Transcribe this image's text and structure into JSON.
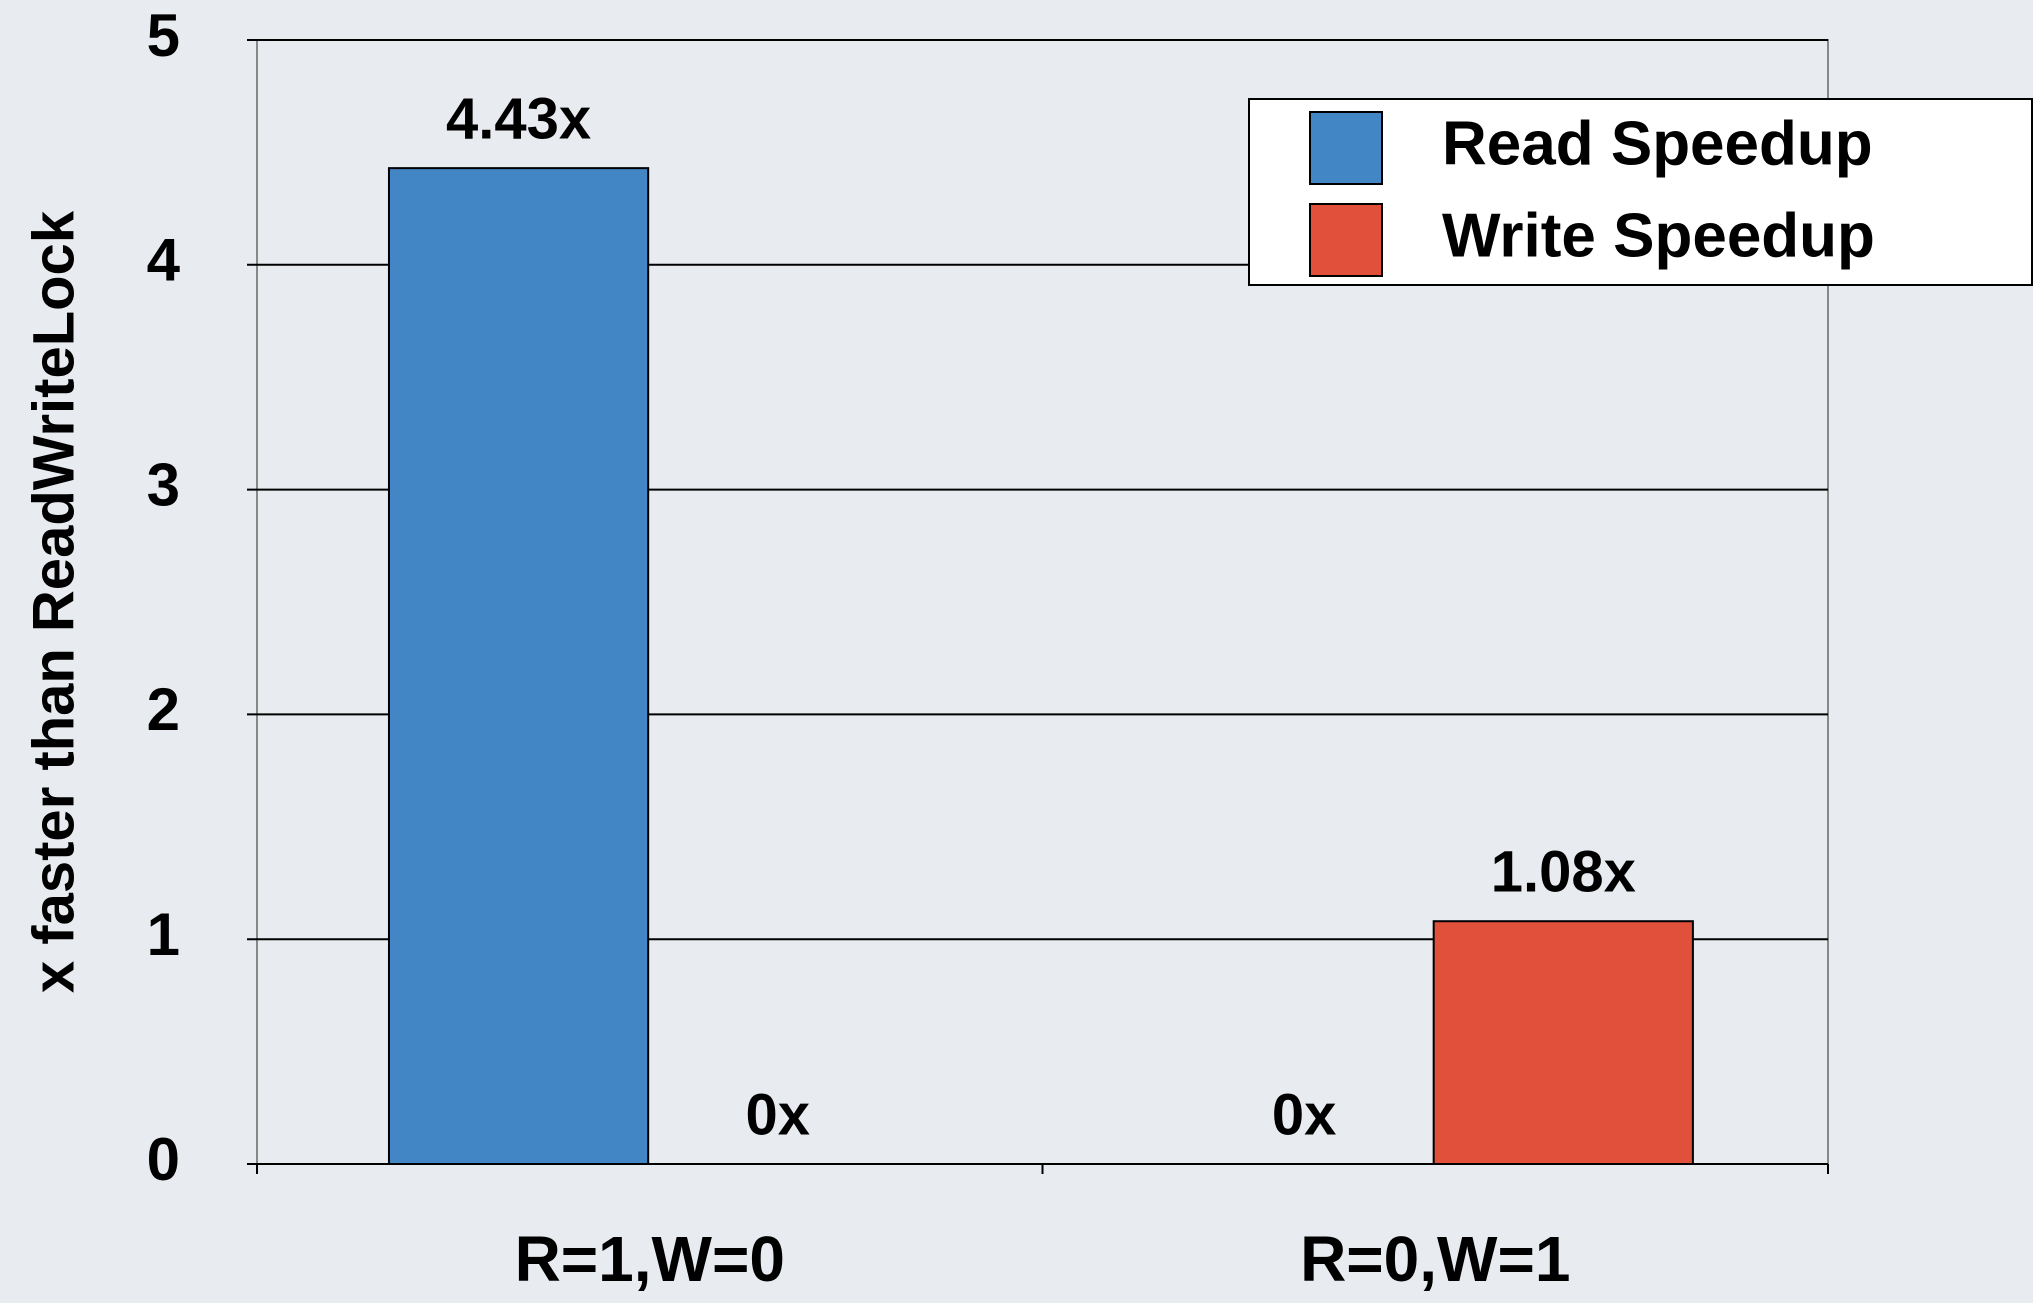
{
  "chart_data": {
    "type": "bar",
    "y_label": "x faster than ReadWriteLock",
    "categories": [
      "R=1,W=0",
      "R=0,W=1"
    ],
    "series": [
      {
        "name": "Read Speedup",
        "color": "#4386c6",
        "values": [
          4.43,
          0
        ],
        "value_labels": [
          "4.43x",
          "0x"
        ]
      },
      {
        "name": "Write Speedup",
        "color": "#e0503a",
        "values": [
          0,
          1.08
        ],
        "value_labels": [
          "0x",
          "1.08x"
        ]
      }
    ],
    "ylim": [
      0,
      5
    ],
    "yticks": [
      0,
      1,
      2,
      3,
      4,
      5
    ],
    "grid": true,
    "legend": "upper right"
  }
}
